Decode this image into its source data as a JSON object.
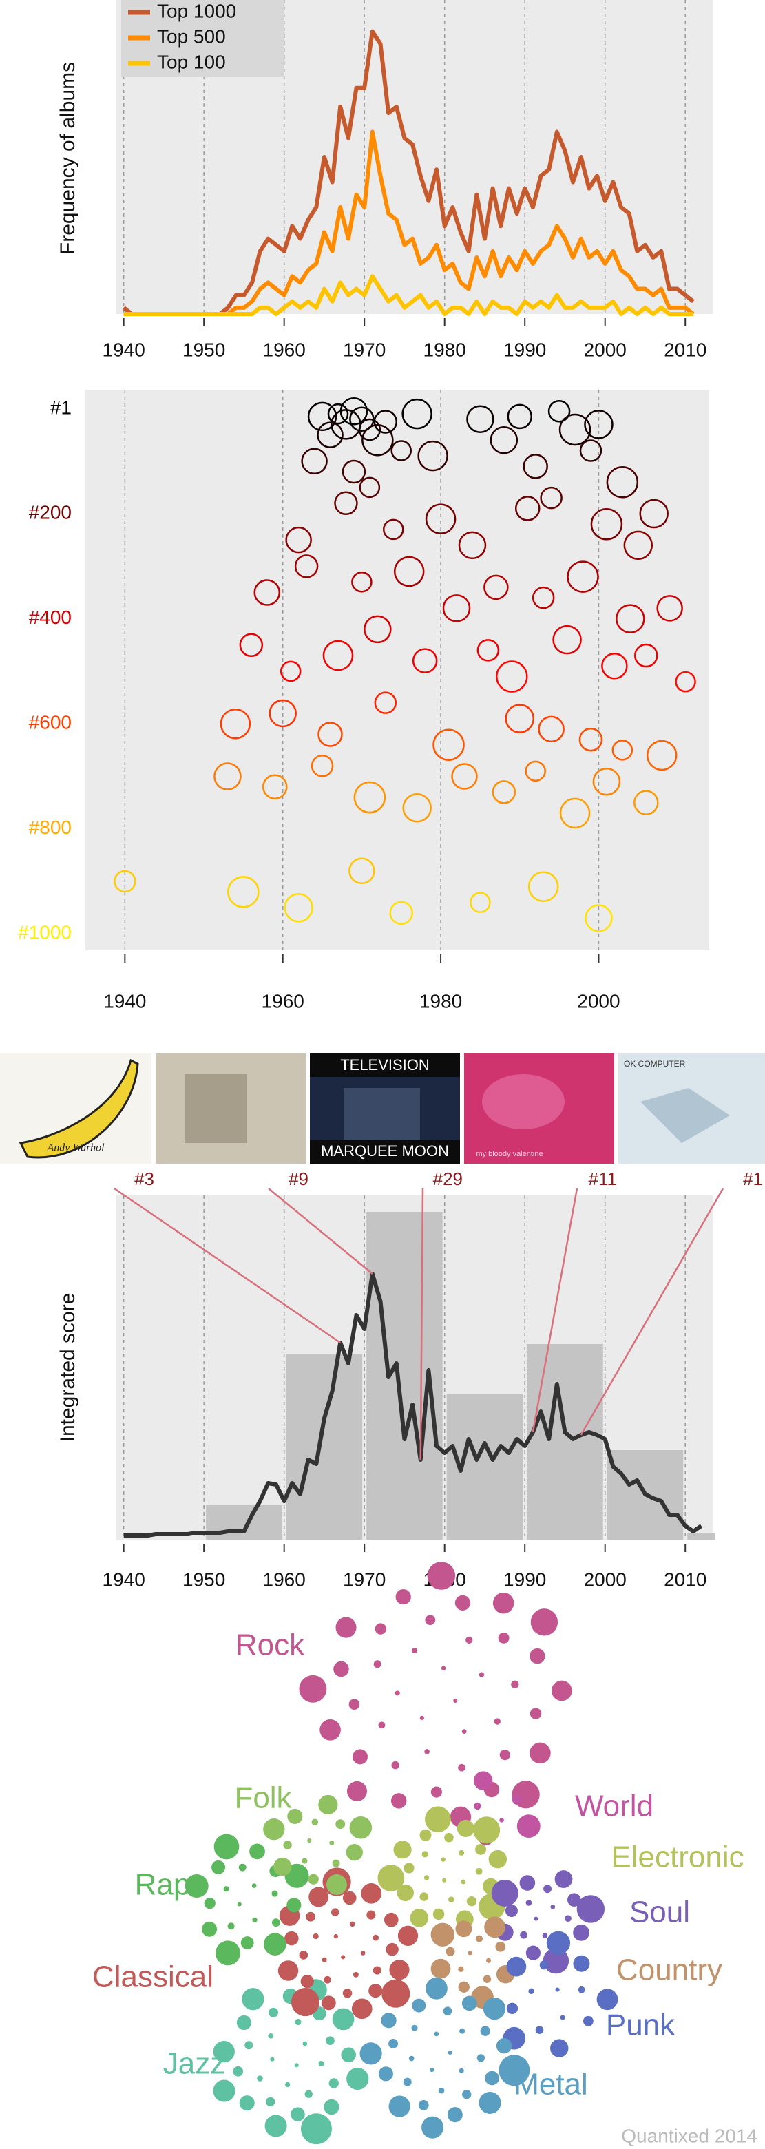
{
  "chart_data": [
    {
      "type": "line",
      "y_label": "Frequency of albums",
      "x": [
        1940,
        1941,
        1942,
        1943,
        1944,
        1945,
        1946,
        1947,
        1948,
        1949,
        1950,
        1951,
        1952,
        1953,
        1954,
        1955,
        1956,
        1957,
        1958,
        1959,
        1960,
        1961,
        1962,
        1963,
        1964,
        1965,
        1966,
        1967,
        1968,
        1969,
        1970,
        1971,
        1972,
        1973,
        1974,
        1975,
        1976,
        1977,
        1978,
        1979,
        1980,
        1981,
        1982,
        1983,
        1984,
        1985,
        1986,
        1987,
        1988,
        1989,
        1990,
        1991,
        1992,
        1993,
        1994,
        1995,
        1996,
        1997,
        1998,
        1999,
        2000,
        2001,
        2002,
        2003,
        2004,
        2005,
        2006,
        2007,
        2008,
        2009,
        2010,
        2011
      ],
      "series": [
        {
          "name": "Top 1000",
          "color": "#c65a2c",
          "values": [
            1,
            0,
            0,
            0,
            0,
            0,
            0,
            0,
            0,
            0,
            0,
            0,
            0,
            1,
            3,
            3,
            5,
            10,
            12,
            11,
            10,
            14,
            12,
            15,
            17,
            25,
            21,
            33,
            28,
            36,
            36,
            45,
            43,
            32,
            33,
            28,
            27,
            22,
            18,
            23,
            14,
            17,
            13,
            10,
            19,
            12,
            20,
            14,
            20,
            16,
            20,
            17,
            22,
            23,
            29,
            26,
            21,
            25,
            20,
            22,
            18,
            21,
            17,
            16,
            10,
            11,
            9,
            10,
            4,
            4,
            3,
            2
          ]
        },
        {
          "name": "Top 500",
          "color": "#ff8c00",
          "values": [
            0,
            0,
            0,
            0,
            0,
            0,
            0,
            0,
            0,
            0,
            0,
            0,
            0,
            0,
            1,
            1,
            2,
            4,
            5,
            4,
            3,
            6,
            5,
            7,
            8,
            13,
            10,
            17,
            12,
            19,
            17,
            29,
            22,
            16,
            15,
            11,
            12,
            8,
            9,
            11,
            7,
            8,
            5,
            4,
            9,
            6,
            10,
            6,
            9,
            7,
            10,
            8,
            10,
            11,
            14,
            12,
            9,
            12,
            9,
            10,
            8,
            10,
            7,
            6,
            4,
            4,
            3,
            4,
            1,
            1,
            1,
            0
          ]
        },
        {
          "name": "Top 100",
          "color": "#ffc400",
          "values": [
            0,
            0,
            0,
            0,
            0,
            0,
            0,
            0,
            0,
            0,
            0,
            0,
            0,
            0,
            0,
            0,
            0,
            1,
            1,
            0,
            1,
            2,
            1,
            2,
            1,
            4,
            2,
            5,
            3,
            4,
            3,
            6,
            4,
            2,
            3,
            1,
            2,
            3,
            1,
            2,
            0,
            1,
            1,
            0,
            2,
            0,
            2,
            1,
            1,
            0,
            2,
            1,
            2,
            1,
            3,
            1,
            1,
            2,
            1,
            1,
            1,
            2,
            0,
            1,
            0,
            1,
            0,
            1,
            0,
            0,
            0,
            0
          ]
        }
      ],
      "xlim": [
        1939,
        2013.5
      ],
      "xticks": [
        1940,
        1950,
        1960,
        1970,
        1980,
        1990,
        2000,
        2010
      ],
      "ylim": [
        0,
        50
      ],
      "grid": "x",
      "legend": "upper left"
    },
    {
      "type": "scatter",
      "x": [
        1967,
        1968,
        1969,
        1970,
        1971,
        1972,
        1965,
        1966,
        1973,
        1975,
        1977,
        1985,
        1990,
        1995,
        1997,
        2000,
        1964,
        1969,
        1971,
        1979,
        1988,
        1992,
        1999,
        2003,
        2007,
        1962,
        1968,
        1974,
        1980,
        1984,
        1991,
        1994,
        2001,
        2005,
        1958,
        1963,
        1970,
        1976,
        1982,
        1987,
        1993,
        1998,
        2004,
        2009,
        1956,
        1961,
        1967,
        1972,
        1978,
        1986,
        1989,
        1996,
        2002,
        2006,
        2011,
        1954,
        1960,
        1966,
        1973,
        1981,
        1990,
        1994,
        1999,
        2003,
        2008,
        1953,
        1959,
        1965,
        1971,
        1977,
        1983,
        1988,
        1992,
        1997,
        2001,
        2006,
        1940,
        1955,
        1962,
        1970,
        1975,
        1985,
        1993,
        2000
      ],
      "values": [
        10,
        30,
        5,
        20,
        40,
        60,
        15,
        50,
        25,
        80,
        10,
        20,
        15,
        5,
        40,
        30,
        100,
        120,
        150,
        90,
        60,
        110,
        80,
        140,
        200,
        250,
        180,
        230,
        210,
        260,
        190,
        170,
        220,
        260,
        350,
        300,
        330,
        310,
        380,
        340,
        360,
        320,
        400,
        380,
        450,
        500,
        470,
        420,
        480,
        460,
        510,
        440,
        490,
        470,
        520,
        600,
        580,
        620,
        560,
        640,
        590,
        610,
        630,
        650,
        660,
        700,
        720,
        680,
        740,
        760,
        700,
        730,
        690,
        770,
        710,
        750,
        900,
        920,
        950,
        880,
        960,
        940,
        910,
        970
      ],
      "xlim": [
        1935,
        2014
      ],
      "xticks": [
        1940,
        1960,
        1980,
        2000
      ],
      "ylim": [
        -36,
        1031
      ],
      "y_inverted": true,
      "yticks": [
        {
          "value": 1,
          "label": "#1"
        },
        {
          "value": 200,
          "label": "#200"
        },
        {
          "value": 400,
          "label": "#400"
        },
        {
          "value": 600,
          "label": "#600"
        },
        {
          "value": 800,
          "label": "#800"
        },
        {
          "value": 1000,
          "label": "#1000"
        }
      ],
      "colormap": [
        "#000000",
        "#8b0000",
        "#ff0000",
        "#ff9900",
        "#ffee00"
      ],
      "grid": "x"
    },
    {
      "type": "combo",
      "y_label": "Integrated score",
      "bins": [
        1950,
        1960,
        1970,
        1980,
        1990,
        2000,
        2010,
        2014
      ],
      "bar_values": [
        25,
        135,
        238,
        106,
        142,
        65,
        5
      ],
      "bar_color": "#c4c4c4",
      "x": [
        1940,
        1941,
        1942,
        1943,
        1944,
        1945,
        1946,
        1947,
        1948,
        1949,
        1950,
        1951,
        1952,
        1953,
        1954,
        1955,
        1956,
        1957,
        1958,
        1959,
        1960,
        1961,
        1962,
        1963,
        1964,
        1965,
        1966,
        1967,
        1968,
        1969,
        1970,
        1971,
        1972,
        1973,
        1974,
        1975,
        1976,
        1977,
        1978,
        1979,
        1980,
        1981,
        1982,
        1983,
        1984,
        1985,
        1986,
        1987,
        1988,
        1989,
        1990,
        1991,
        1992,
        1993,
        1994,
        1995,
        1996,
        1997,
        1998,
        1999,
        2000,
        2001,
        2002,
        2003,
        2004,
        2005,
        2006,
        2007,
        2008,
        2009,
        2010,
        2011,
        2012
      ],
      "line_values": [
        3,
        3,
        3,
        3,
        4,
        4,
        4,
        4,
        4,
        5,
        5,
        5,
        5,
        6,
        6,
        6,
        18,
        28,
        41,
        40,
        28,
        41,
        33,
        58,
        55,
        88,
        108,
        143,
        128,
        163,
        153,
        193,
        173,
        118,
        128,
        73,
        98,
        58,
        123,
        68,
        63,
        68,
        50,
        73,
        58,
        70,
        58,
        68,
        63,
        73,
        68,
        78,
        93,
        73,
        113,
        78,
        73,
        76,
        78,
        76,
        73,
        53,
        48,
        40,
        43,
        33,
        30,
        28,
        18,
        18,
        10,
        6,
        10
      ],
      "line_color": "#333333",
      "xlim": [
        1939,
        2013.5
      ],
      "xticks": [
        1940,
        1950,
        1960,
        1970,
        1980,
        1990,
        2000,
        2010
      ],
      "ylim": [
        0,
        250
      ],
      "grid": "x"
    }
  ],
  "albums": [
    {
      "rank": "#3",
      "year": 1967,
      "cover_text": [
        "Andy Warhol"
      ]
    },
    {
      "rank": "#9",
      "year": 1971
    },
    {
      "rank": "#29",
      "year": 1977,
      "cover_text": [
        "TELEVISION",
        "MARQUEE MOON"
      ]
    },
    {
      "rank": "#11",
      "year": 1991,
      "cover_text": [
        "my bloody valentine"
      ]
    },
    {
      "rank": "#1",
      "year": 1997,
      "cover_text": [
        "OK COMPUTER"
      ]
    }
  ],
  "genres": [
    {
      "name": "Rock",
      "color": "#c4568f"
    },
    {
      "name": "World",
      "color": "#c155a2"
    },
    {
      "name": "Electronic",
      "color": "#b4c25c"
    },
    {
      "name": "Soul",
      "color": "#7a5fb9"
    },
    {
      "name": "Country",
      "color": "#c2926a"
    },
    {
      "name": "Punk",
      "color": "#5a6ec4"
    },
    {
      "name": "Metal",
      "color": "#5a9ec2"
    },
    {
      "name": "Jazz",
      "color": "#5ec2a2"
    },
    {
      "name": "Classical",
      "color": "#c25a5a"
    },
    {
      "name": "Rap",
      "color": "#5cb85c"
    },
    {
      "name": "Folk",
      "color": "#8fc160"
    }
  ],
  "footer": "Quantixed 2014"
}
